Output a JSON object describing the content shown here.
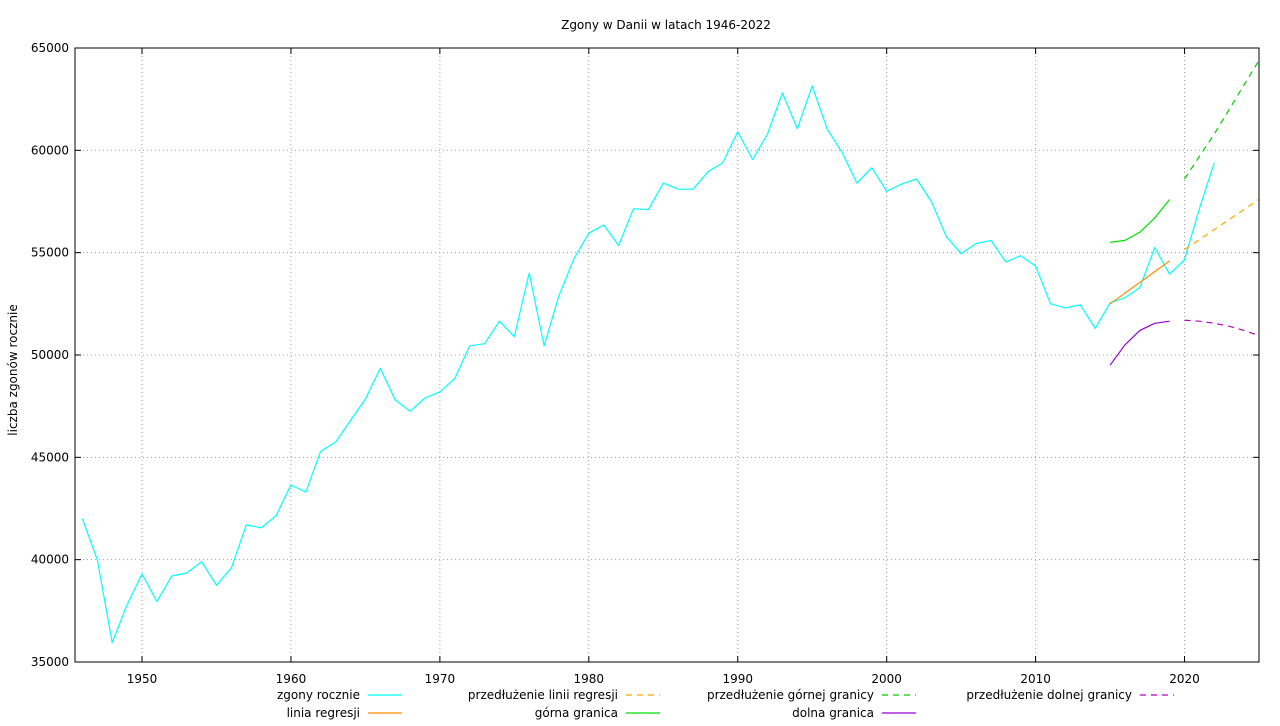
{
  "chart_data": {
    "type": "line",
    "title": "Zgony w Danii w latach 1946-2022",
    "xlabel": "",
    "ylabel": "liczba zgonów rocznie",
    "xlim": [
      1945.5,
      2025
    ],
    "ylim": [
      35000,
      65000
    ],
    "x_ticks": [
      1950,
      1960,
      1970,
      1980,
      1990,
      2000,
      2010,
      2020
    ],
    "y_ticks": [
      35000,
      40000,
      45000,
      50000,
      55000,
      60000,
      65000
    ],
    "grid": true,
    "legend_position": "bottom",
    "series": [
      {
        "name": "zgony rocznie",
        "color": "#00ffff",
        "dash": "solid",
        "x": [
          1946,
          1947,
          1948,
          1949,
          1950,
          1951,
          1952,
          1953,
          1954,
          1955,
          1956,
          1957,
          1958,
          1959,
          1960,
          1961,
          1962,
          1963,
          1964,
          1965,
          1966,
          1967,
          1968,
          1969,
          1970,
          1971,
          1972,
          1973,
          1974,
          1975,
          1976,
          1977,
          1978,
          1979,
          1980,
          1981,
          1982,
          1983,
          1984,
          1985,
          1986,
          1987,
          1988,
          1989,
          1990,
          1991,
          1992,
          1993,
          1994,
          1995,
          1996,
          1997,
          1998,
          1999,
          2000,
          2001,
          2002,
          2003,
          2004,
          2005,
          2006,
          2007,
          2008,
          2009,
          2010,
          2011,
          2012,
          2013,
          2014,
          2015,
          2016,
          2017,
          2018,
          2019,
          2020,
          2021,
          2022
        ],
        "y": [
          42000,
          40000,
          35950,
          37800,
          39300,
          37950,
          39200,
          39350,
          39900,
          38750,
          39600,
          41700,
          41550,
          42150,
          43650,
          43300,
          45300,
          45750,
          46800,
          47850,
          49350,
          47800,
          47250,
          47900,
          48200,
          48850,
          50450,
          50550,
          51650,
          50900,
          54000,
          50450,
          52900,
          54700,
          55950,
          56350,
          55350,
          57150,
          57100,
          58400,
          58100,
          58100,
          58950,
          59400,
          60900,
          59550,
          60800,
          62800,
          61050,
          63150,
          61050,
          59900,
          58400,
          59150,
          58000,
          58350,
          58600,
          57500,
          55800,
          54950,
          55450,
          55600,
          54550,
          54850,
          54350,
          52500,
          52300,
          52450,
          51300,
          52550,
          52800,
          53300,
          55250,
          53950,
          54650,
          57150,
          59400
        ]
      },
      {
        "name": "linia regresji",
        "color": "#ff8c00",
        "dash": "solid",
        "x": [
          2015,
          2019
        ],
        "y": [
          52500,
          54600
        ]
      },
      {
        "name": "przedłużenie linii regresji",
        "color": "#ffa500",
        "dash": "dashed",
        "x": [
          2020,
          2025
        ],
        "y": [
          55150,
          57600
        ]
      },
      {
        "name": "górna granica",
        "color": "#00e000",
        "dash": "solid",
        "x": [
          2015,
          2016,
          2017,
          2018,
          2019
        ],
        "y": [
          55500,
          55600,
          56000,
          56700,
          57600
        ]
      },
      {
        "name": "przedłużenie górnej granicy",
        "color": "#00cc00",
        "dash": "dashed",
        "x": [
          2020,
          2021,
          2022,
          2023,
          2024,
          2025
        ],
        "y": [
          58600,
          59700,
          60800,
          62000,
          63200,
          64400
        ]
      },
      {
        "name": "dolna granica",
        "color": "#9400d3",
        "dash": "solid",
        "x": [
          2015,
          2016,
          2017,
          2018,
          2019
        ],
        "y": [
          49500,
          50500,
          51200,
          51550,
          51650
        ]
      },
      {
        "name": "przedłużenie dolnej granicy",
        "color": "#b000c0",
        "dash": "dashed",
        "x": [
          2020,
          2021,
          2022,
          2023,
          2024,
          2025
        ],
        "y": [
          51700,
          51650,
          51550,
          51400,
          51200,
          50950
        ]
      }
    ]
  },
  "legend": {
    "items": [
      {
        "label": "zgony rocznie",
        "series": 0
      },
      {
        "label": "linia regresji",
        "series": 1
      },
      {
        "label": "przedłużenie linii regresji",
        "series": 2
      },
      {
        "label": "górna granica",
        "series": 3
      },
      {
        "label": "przedłużenie górnej granicy",
        "series": 4
      },
      {
        "label": "dolna granica",
        "series": 5
      },
      {
        "label": "przedłużenie dolnej granicy",
        "series": 6
      }
    ]
  }
}
